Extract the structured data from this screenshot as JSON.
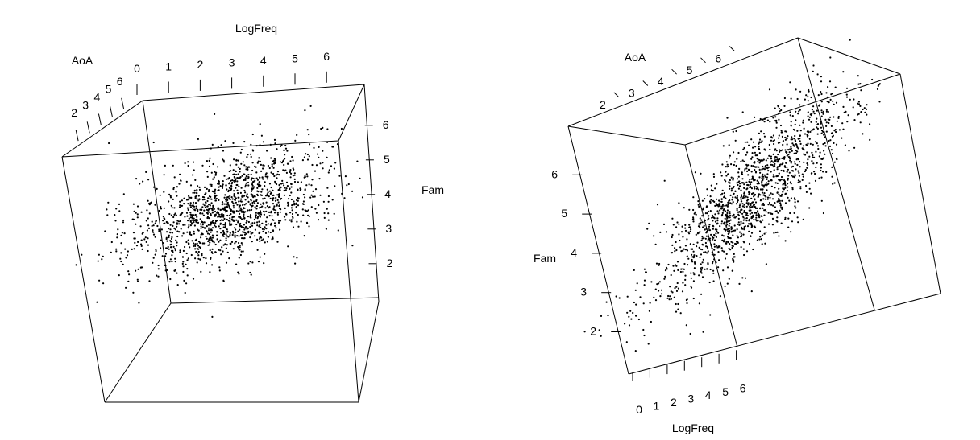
{
  "colors": {
    "background": "#ffffff",
    "ink": "#000000"
  },
  "chart_data": [
    {
      "type": "scatter",
      "projection": "3d",
      "axes": {
        "x": {
          "label": "LogFreq",
          "ticks": [
            0,
            1,
            2,
            3,
            4,
            5,
            6
          ],
          "range": [
            0,
            6.3
          ]
        },
        "y": {
          "label": "AoA",
          "ticks": [
            2,
            3,
            4,
            5,
            6
          ],
          "range": [
            1.5,
            6.8
          ]
        },
        "z": {
          "label": "Fam",
          "ticks": [
            2,
            3,
            4,
            5,
            6
          ],
          "range": [
            1.6,
            6.6
          ]
        }
      },
      "grid": false,
      "legend": "none",
      "n_points": 1500,
      "point_color": "#000000"
    },
    {
      "type": "scatter",
      "projection": "3d",
      "axes": {
        "x": {
          "label": "LogFreq",
          "ticks": [
            0,
            1,
            2,
            3,
            4,
            5,
            6
          ],
          "range": [
            0,
            6.3
          ]
        },
        "y": {
          "label": "AoA",
          "ticks": [
            2,
            3,
            4,
            5,
            6
          ],
          "range": [
            1.5,
            6.8
          ]
        },
        "z": {
          "label": "Fam",
          "ticks": [
            2,
            3,
            4,
            5,
            6
          ],
          "range": [
            1.6,
            6.6
          ]
        }
      },
      "grid": false,
      "legend": "none",
      "n_points": 1500,
      "point_color": "#000000"
    }
  ]
}
